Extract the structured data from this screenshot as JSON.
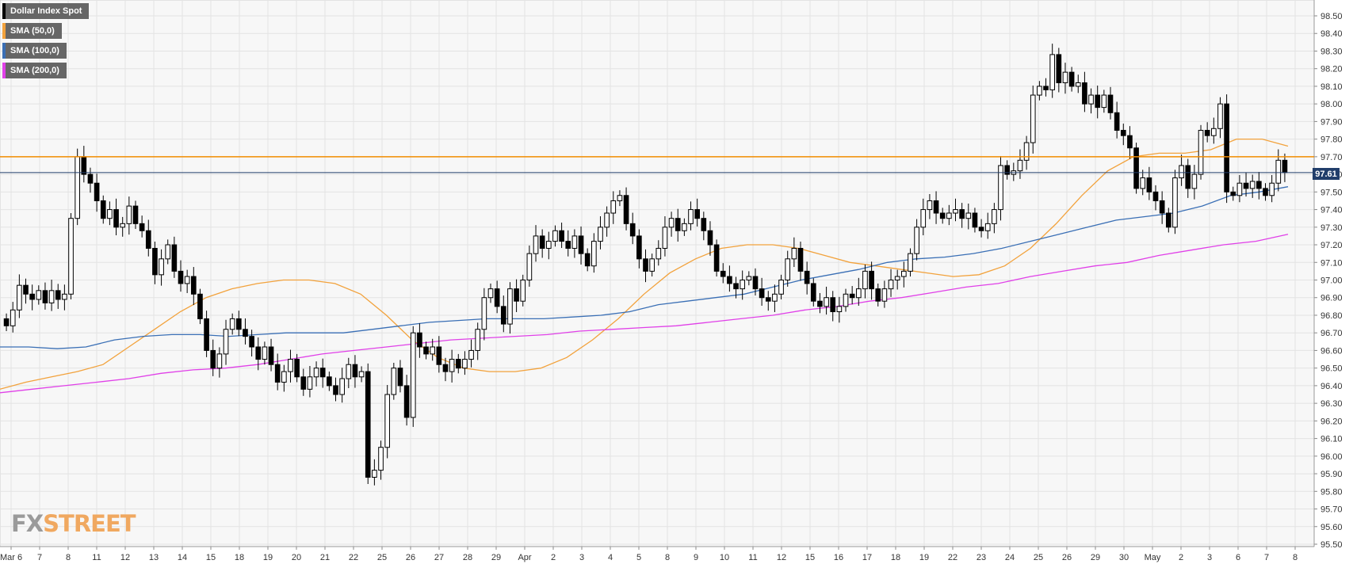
{
  "legend": [
    {
      "label": "Dollar Index Spot",
      "color": "#000000"
    },
    {
      "label": "SMA (50,0)",
      "color": "#f2a23c"
    },
    {
      "label": "SMA (100,0)",
      "color": "#3a6fb5"
    },
    {
      "label": "SMA (200,0)",
      "color": "#e040e8"
    }
  ],
  "logo": {
    "part1": "FX",
    "part2": "STREET"
  },
  "price_label": "97.61",
  "chart_data": {
    "type": "candlestick",
    "title": "",
    "ylim": [
      95.5,
      98.55
    ],
    "yticks": [
      "98.50",
      "98.40",
      "98.30",
      "98.20",
      "98.10",
      "98.00",
      "97.90",
      "97.80",
      "97.70",
      "97.60",
      "97.50",
      "97.40",
      "97.30",
      "97.20",
      "97.10",
      "97.00",
      "96.90",
      "96.80",
      "96.70",
      "96.60",
      "96.50",
      "96.40",
      "96.30",
      "96.20",
      "96.10",
      "96.00",
      "95.90",
      "95.80",
      "95.70",
      "95.60",
      "95.50"
    ],
    "xticks": [
      "Mar 6",
      "7",
      "8",
      "11",
      "12",
      "13",
      "14",
      "15",
      "18",
      "19",
      "20",
      "21",
      "22",
      "25",
      "26",
      "27",
      "28",
      "29",
      "Apr",
      "2",
      "3",
      "4",
      "5",
      "8",
      "9",
      "10",
      "11",
      "12",
      "15",
      "16",
      "17",
      "18",
      "19",
      "22",
      "23",
      "24",
      "25",
      "26",
      "29",
      "30",
      "May",
      "2",
      "3",
      "6",
      "7",
      "8"
    ],
    "horizontal_line": {
      "value": 97.7,
      "color": "#f28c00"
    },
    "last_price_line": {
      "value": 97.61,
      "color": "#213e6b"
    },
    "candles": [
      [
        96.78,
        96.74
      ],
      [
        96.74,
        96.83
      ],
      [
        96.83,
        96.97
      ],
      [
        96.97,
        96.92
      ],
      [
        96.92,
        96.89
      ],
      [
        96.89,
        96.94
      ],
      [
        96.94,
        96.87
      ],
      [
        96.87,
        96.94
      ],
      [
        96.94,
        96.89
      ],
      [
        96.89,
        96.92
      ],
      [
        96.92,
        97.35
      ],
      [
        97.35,
        97.7
      ],
      [
        97.7,
        97.6
      ],
      [
        97.6,
        97.55
      ],
      [
        97.55,
        97.45
      ],
      [
        97.45,
        97.35
      ],
      [
        97.35,
        97.4
      ],
      [
        97.4,
        97.3
      ],
      [
        97.3,
        97.32
      ],
      [
        97.32,
        97.42
      ],
      [
        97.42,
        97.32
      ],
      [
        97.32,
        97.28
      ],
      [
        97.28,
        97.18
      ],
      [
        97.18,
        97.03
      ],
      [
        97.03,
        97.12
      ],
      [
        97.12,
        97.2
      ],
      [
        97.2,
        97.05
      ],
      [
        97.05,
        96.98
      ],
      [
        96.98,
        97.02
      ],
      [
        97.02,
        96.92
      ],
      [
        96.92,
        96.78
      ],
      [
        96.78,
        96.6
      ],
      [
        96.6,
        96.5
      ],
      [
        96.5,
        96.58
      ],
      [
        96.58,
        96.72
      ],
      [
        96.72,
        96.78
      ],
      [
        96.78,
        96.72
      ],
      [
        96.72,
        96.68
      ],
      [
        96.68,
        96.62
      ],
      [
        96.62,
        96.55
      ],
      [
        96.55,
        96.62
      ],
      [
        96.62,
        96.52
      ],
      [
        96.52,
        96.42
      ],
      [
        96.42,
        96.48
      ],
      [
        96.48,
        96.55
      ],
      [
        96.55,
        96.45
      ],
      [
        96.45,
        96.38
      ],
      [
        96.38,
        96.45
      ],
      [
        96.45,
        96.5
      ],
      [
        96.5,
        96.45
      ],
      [
        96.45,
        96.4
      ],
      [
        96.4,
        96.35
      ],
      [
        96.35,
        96.44
      ],
      [
        96.44,
        96.52
      ],
      [
        96.52,
        96.45
      ],
      [
        96.45,
        96.48
      ],
      [
        96.48,
        95.88
      ],
      [
        95.88,
        95.92
      ],
      [
        95.92,
        96.05
      ],
      [
        96.05,
        96.35
      ],
      [
        96.35,
        96.5
      ],
      [
        96.5,
        96.4
      ],
      [
        96.4,
        96.22
      ],
      [
        96.22,
        96.7
      ],
      [
        96.7,
        96.62
      ],
      [
        96.62,
        96.58
      ],
      [
        96.58,
        96.62
      ],
      [
        96.62,
        96.52
      ],
      [
        96.52,
        96.48
      ],
      [
        96.48,
        96.55
      ],
      [
        96.55,
        96.5
      ],
      [
        96.5,
        96.55
      ],
      [
        96.55,
        96.6
      ],
      [
        96.6,
        96.72
      ],
      [
        96.72,
        96.9
      ],
      [
        96.9,
        96.95
      ],
      [
        96.95,
        96.85
      ],
      [
        96.85,
        96.75
      ],
      [
        96.75,
        96.95
      ],
      [
        96.95,
        96.88
      ],
      [
        96.88,
        97.0
      ],
      [
        97.0,
        97.15
      ],
      [
        97.15,
        97.25
      ],
      [
        97.25,
        97.18
      ],
      [
        97.18,
        97.22
      ],
      [
        97.22,
        97.28
      ],
      [
        97.28,
        97.22
      ],
      [
        97.22,
        97.18
      ],
      [
        97.18,
        97.25
      ],
      [
        97.25,
        97.15
      ],
      [
        97.15,
        97.08
      ],
      [
        97.08,
        97.22
      ],
      [
        97.22,
        97.3
      ],
      [
        97.3,
        97.38
      ],
      [
        97.38,
        97.45
      ],
      [
        97.45,
        97.48
      ],
      [
        97.48,
        97.32
      ],
      [
        97.32,
        97.25
      ],
      [
        97.25,
        97.12
      ],
      [
        97.12,
        97.05
      ],
      [
        97.05,
        97.12
      ],
      [
        97.12,
        97.18
      ],
      [
        97.18,
        97.3
      ],
      [
        97.3,
        97.35
      ],
      [
        97.35,
        97.28
      ],
      [
        97.28,
        97.32
      ],
      [
        97.32,
        97.4
      ],
      [
        97.4,
        97.35
      ],
      [
        97.35,
        97.28
      ],
      [
        97.28,
        97.2
      ],
      [
        97.2,
        97.05
      ],
      [
        97.05,
        97.02
      ],
      [
        97.02,
        96.98
      ],
      [
        96.98,
        96.95
      ],
      [
        96.95,
        97.0
      ],
      [
        97.0,
        97.02
      ],
      [
        97.02,
        96.95
      ],
      [
        96.95,
        96.9
      ],
      [
        96.9,
        96.88
      ],
      [
        96.88,
        96.92
      ],
      [
        96.92,
        97.0
      ],
      [
        97.0,
        97.12
      ],
      [
        97.12,
        97.18
      ],
      [
        97.18,
        97.05
      ],
      [
        97.05,
        96.98
      ],
      [
        96.98,
        96.88
      ],
      [
        96.88,
        96.85
      ],
      [
        96.85,
        96.9
      ],
      [
        96.9,
        96.82
      ],
      [
        96.82,
        96.85
      ],
      [
        96.85,
        96.92
      ],
      [
        96.92,
        96.9
      ],
      [
        96.9,
        96.95
      ],
      [
        96.95,
        97.05
      ],
      [
        97.05,
        96.95
      ],
      [
        96.95,
        96.88
      ],
      [
        96.88,
        96.95
      ],
      [
        96.95,
        97.0
      ],
      [
        97.0,
        97.02
      ],
      [
        97.02,
        97.05
      ],
      [
        97.05,
        97.15
      ],
      [
        97.15,
        97.3
      ],
      [
        97.3,
        97.4
      ],
      [
        97.4,
        97.45
      ],
      [
        97.45,
        97.38
      ],
      [
        97.38,
        97.35
      ],
      [
        97.35,
        97.38
      ],
      [
        97.38,
        97.4
      ],
      [
        97.4,
        97.35
      ],
      [
        97.35,
        97.38
      ],
      [
        97.38,
        97.3
      ],
      [
        97.3,
        97.28
      ],
      [
        97.28,
        97.32
      ],
      [
        97.32,
        97.4
      ],
      [
        97.4,
        97.65
      ],
      [
        97.65,
        97.6
      ],
      [
        97.6,
        97.62
      ],
      [
        97.62,
        97.68
      ],
      [
        97.68,
        97.78
      ],
      [
        97.78,
        98.05
      ],
      [
        98.05,
        98.1
      ],
      [
        98.1,
        98.08
      ],
      [
        98.08,
        98.28
      ],
      [
        98.28,
        98.12
      ],
      [
        98.12,
        98.18
      ],
      [
        98.18,
        98.1
      ],
      [
        98.1,
        98.12
      ],
      [
        98.12,
        98.0
      ],
      [
        98.0,
        98.05
      ],
      [
        98.05,
        97.98
      ],
      [
        97.98,
        98.05
      ],
      [
        98.05,
        97.95
      ],
      [
        97.95,
        97.85
      ],
      [
        97.85,
        97.82
      ],
      [
        97.82,
        97.75
      ],
      [
        97.75,
        97.52
      ],
      [
        97.52,
        97.58
      ],
      [
        97.58,
        97.5
      ],
      [
        97.5,
        97.45
      ],
      [
        97.45,
        97.38
      ],
      [
        97.38,
        97.3
      ],
      [
        97.3,
        97.58
      ],
      [
        97.58,
        97.65
      ],
      [
        97.65,
        97.52
      ],
      [
        97.52,
        97.6
      ],
      [
        97.6,
        97.85
      ],
      [
        97.85,
        97.82
      ],
      [
        97.82,
        97.86
      ],
      [
        97.86,
        98.0
      ],
      [
        98.0,
        97.5
      ],
      [
        97.5,
        97.48
      ],
      [
        97.48,
        97.55
      ],
      [
        97.55,
        97.52
      ],
      [
        97.52,
        97.56
      ],
      [
        97.56,
        97.52
      ],
      [
        97.52,
        97.48
      ],
      [
        97.48,
        97.55
      ],
      [
        97.55,
        97.68
      ],
      [
        97.68,
        97.61
      ]
    ],
    "series": [
      {
        "name": "SMA (50,0)",
        "color": "#f2a23c",
        "values": [
          96.38,
          96.42,
          96.45,
          96.48,
          96.52,
          96.62,
          96.72,
          96.82,
          96.9,
          96.95,
          96.98,
          97.0,
          97.0,
          96.98,
          96.92,
          96.8,
          96.66,
          96.56,
          96.5,
          96.48,
          96.48,
          96.5,
          96.56,
          96.66,
          96.78,
          96.92,
          97.04,
          97.12,
          97.18,
          97.2,
          97.2,
          97.18,
          97.14,
          97.1,
          97.08,
          97.06,
          97.04,
          97.02,
          97.03,
          97.08,
          97.18,
          97.32,
          97.48,
          97.62,
          97.7,
          97.72,
          97.72,
          97.74,
          97.8,
          97.8,
          97.76
        ]
      },
      {
        "name": "SMA (100,0)",
        "color": "#3a6fb5",
        "values": [
          96.62,
          96.62,
          96.61,
          96.62,
          96.66,
          96.68,
          96.69,
          96.69,
          96.68,
          96.69,
          96.7,
          96.7,
          96.7,
          96.72,
          96.74,
          96.76,
          96.77,
          96.78,
          96.78,
          96.78,
          96.79,
          96.8,
          96.82,
          96.86,
          96.88,
          96.9,
          96.92,
          96.96,
          97.0,
          97.03,
          97.06,
          97.1,
          97.12,
          97.13,
          97.15,
          97.18,
          97.22,
          97.26,
          97.3,
          97.34,
          97.36,
          97.38,
          97.42,
          97.48,
          97.5,
          97.53
        ]
      },
      {
        "name": "SMA (200,0)",
        "color": "#e040e8",
        "values": [
          96.36,
          96.38,
          96.4,
          96.42,
          96.44,
          96.47,
          96.49,
          96.5,
          96.52,
          96.55,
          96.58,
          96.6,
          96.62,
          96.64,
          96.66,
          96.67,
          96.68,
          96.69,
          96.71,
          96.72,
          96.73,
          96.74,
          96.76,
          96.78,
          96.8,
          96.83,
          96.85,
          96.88,
          96.9,
          96.93,
          96.96,
          96.98,
          97.02,
          97.05,
          97.08,
          97.1,
          97.14,
          97.17,
          97.2,
          97.22,
          97.26
        ]
      }
    ]
  }
}
